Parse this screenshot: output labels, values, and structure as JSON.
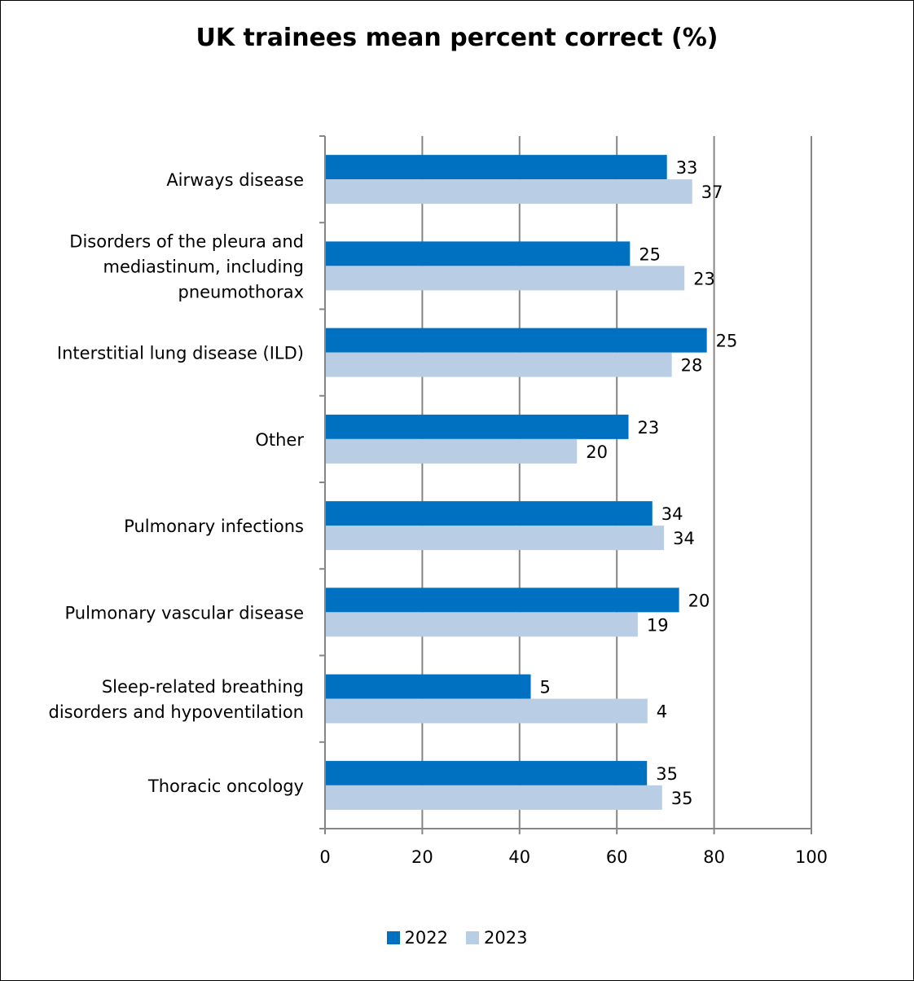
{
  "chart_data": {
    "type": "bar",
    "orientation": "horizontal",
    "title": "UK trainees mean percent correct (%)",
    "xlabel": "",
    "ylabel": "",
    "xlim": [
      0,
      100
    ],
    "x_ticks": [
      0,
      20,
      40,
      60,
      80,
      100
    ],
    "grid": true,
    "legend_position": "bottom",
    "categories": [
      "Airways disease",
      "Disorders of the pleura and mediastinum, including pneumothorax",
      "Interstitial lung disease (ILD)",
      "Other",
      "Pulmonary infections",
      "Pulmonary vascular disease",
      "Sleep-related breathing disorders and hypoventilation",
      "Thoracic oncology"
    ],
    "category_label_lines": [
      [
        "Airways disease"
      ],
      [
        "Disorders of the pleura and",
        "mediastinum, including",
        "pneumothorax"
      ],
      [
        "Interstitial lung disease (ILD)"
      ],
      [
        "Other"
      ],
      [
        "Pulmonary infections"
      ],
      [
        "Pulmonary vascular disease"
      ],
      [
        "Sleep-related breathing",
        "disorders and hypoventilation"
      ],
      [
        "Thoracic oncology"
      ]
    ],
    "series": [
      {
        "name": "2022",
        "color": "#0070c0",
        "values": [
          70.3,
          62.7,
          78.5,
          62.4,
          67.3,
          72.8,
          42.3,
          66.2
        ],
        "data_labels": [
          "33",
          "25",
          "25",
          "23",
          "34",
          "20",
          "5",
          "35"
        ]
      },
      {
        "name": "2023",
        "color": "#b9cde5",
        "values": [
          75.5,
          73.9,
          71.3,
          51.8,
          69.7,
          64.3,
          66.3,
          69.3
        ],
        "data_labels": [
          "37",
          "23",
          "28",
          "20",
          "34",
          "19",
          "4",
          "35"
        ]
      }
    ]
  }
}
